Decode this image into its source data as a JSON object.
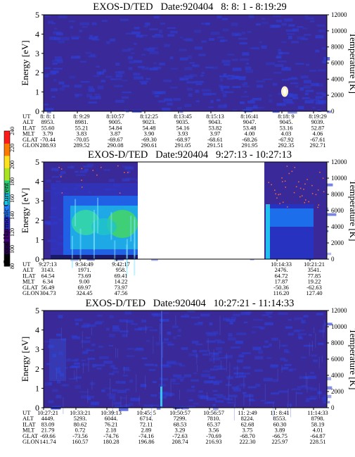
{
  "colors": {
    "background": "#3a2a99",
    "noise": "#2d3fd6",
    "intense_fill": "#41d36a",
    "wave_core": "#2ecf9a",
    "gap": "#ffffff",
    "black_base": "#000000"
  },
  "colorbar": {
    "label": "Second Harmonic Current",
    "ticks": [
      "80",
      "100",
      "120",
      "140",
      "160",
      "180",
      "200",
      "220",
      "240"
    ],
    "colors": [
      "#000000",
      "#2a0052",
      "#44007f",
      "#2a2ac8",
      "#1f7cff",
      "#12c7e6",
      "#24d27c",
      "#a8e51e",
      "#ffe21a",
      "#ff7a00",
      "#ff1a1a"
    ],
    "range": [
      80,
      240
    ]
  },
  "chart_data": [
    {
      "type": "heatmap",
      "title": "EXOS-D/TED   Date:920404   8: 8: 1 - 8:19:29",
      "xlabel": "",
      "ylabel": "Energy [eV]",
      "ylabel2": "Temperature [K]",
      "ylim": [
        0,
        5
      ],
      "y2lim": [
        0,
        12000
      ],
      "yticks": [
        "0",
        "1",
        "2",
        "3",
        "4",
        "5"
      ],
      "y2ticks": [
        "0",
        "2000",
        "4000",
        "6000",
        "8000",
        "10000",
        "12000"
      ],
      "grid": false,
      "ephemeris": {
        "labels": [
          "UT",
          "ALT",
          "ILAT",
          "MLT",
          "GLAT",
          "GLON"
        ],
        "columns": [
          [
            "8: 8: 1",
            "8953.",
            "55.60",
            "3.79",
            "-70.44",
            "288.93"
          ],
          [
            "8: 9:29",
            "8981.",
            "55.21",
            "3.83",
            "-70.05",
            "289.52"
          ],
          [
            "8:10:57",
            "9005.",
            "54.84",
            "3.87",
            "-69.67",
            "290.08"
          ],
          [
            "8:12:25",
            "9023.",
            "54.48",
            "3.90",
            "-69.30",
            "290.61"
          ],
          [
            "8:13:45",
            "9035.",
            "54.16",
            "3.93",
            "-68.97",
            "291.05"
          ],
          [
            "8:15:13",
            "9043.",
            "53.82",
            "3.97",
            "-68.61",
            "291.51"
          ],
          [
            "8:16:41",
            "9047.",
            "53.48",
            "4.00",
            "-68.26",
            "291.95"
          ],
          [
            "8:18: 9",
            "9045.",
            "53.16",
            "4.03",
            "-67.92",
            "292.35"
          ],
          [
            "8:19:29",
            "9039.",
            "52.87",
            "4.06",
            "-67.61",
            "292.71"
          ]
        ]
      }
    },
    {
      "type": "heatmap",
      "title": "EXOS-D/TED   Date:920404   9:27:13 - 10:27:13",
      "xlabel": "",
      "ylabel": "Energy [eV]",
      "ylabel2": "Temperature [K]",
      "ylim": [
        0,
        5
      ],
      "y2lim": [
        0,
        12000
      ],
      "yticks": [
        "0",
        "1",
        "2",
        "3",
        "4",
        "5"
      ],
      "y2ticks": [
        "0",
        "2000",
        "4000",
        "6000",
        "8000",
        "10000",
        "12000"
      ],
      "grid": false,
      "ephemeris": {
        "labels": [
          "UT",
          "ALT",
          "ILAT",
          "MLT",
          "GLAT",
          "GLON"
        ],
        "columns": [
          [
            "9:27:13",
            "3143.",
            "64.54",
            "6.34",
            "56.49",
            "304.73"
          ],
          [
            "9:34:49",
            "1971.",
            "73.69",
            "9.00",
            "69.97",
            "324.45"
          ],
          [
            "9:42:17",
            "958.",
            "69.41",
            "14.22",
            "73.97",
            "47.56"
          ],
          [
            "10:14:33",
            "2476.",
            "64.72",
            "17.87",
            "-50.36",
            "116.20"
          ],
          [
            "10:21:21",
            "3541.",
            "77.85",
            "19.22",
            "-62.63",
            "127.40"
          ]
        ]
      }
    },
    {
      "type": "heatmap",
      "title": "EXOS-D/TED   Date:920404   10:27:21 - 11:14:33",
      "xlabel": "",
      "ylabel": "Energy [eV]",
      "ylabel2": "Temperature [K]",
      "ylim": [
        0,
        5
      ],
      "y2lim": [
        0,
        12000
      ],
      "yticks": [
        "0",
        "1",
        "2",
        "3",
        "4",
        "5"
      ],
      "y2ticks": [
        "0",
        "2000",
        "4000",
        "6000",
        "8000",
        "10000",
        "12000"
      ],
      "grid": false,
      "ephemeris": {
        "labels": [
          "UT",
          "ALT",
          "ILAT",
          "MLT",
          "GLAT",
          "GLON"
        ],
        "columns": [
          [
            "10:27:21",
            "4449.",
            "83.09",
            "21.79",
            "-69.66",
            "141.74"
          ],
          [
            "10:33:21",
            "5293.",
            "80.62",
            "0.72",
            "-73.56",
            "160.57"
          ],
          [
            "10:39:13",
            "6044.",
            "76.21",
            "2.18",
            "-74.76",
            "180.28"
          ],
          [
            "10:45: 5",
            "6714.",
            "72.11",
            "2.89",
            "-74.16",
            "196.86"
          ],
          [
            "10:50:57",
            "7299.",
            "68.53",
            "3.29",
            "-72.63",
            "208.74"
          ],
          [
            "10:56:57",
            "7810.",
            "65.37",
            "3.56",
            "-70.69",
            "216.93"
          ],
          [
            "11: 2:49",
            "8224.",
            "62.68",
            "3.75",
            "-68.70",
            "222.30"
          ],
          [
            "11: 8:41",
            "8553.",
            "60.30",
            "3.89",
            "-66.75",
            "225.97"
          ],
          [
            "11:14:33",
            "8798.",
            "58.19",
            "4.01",
            "-64.87",
            "228.51"
          ]
        ]
      }
    }
  ]
}
